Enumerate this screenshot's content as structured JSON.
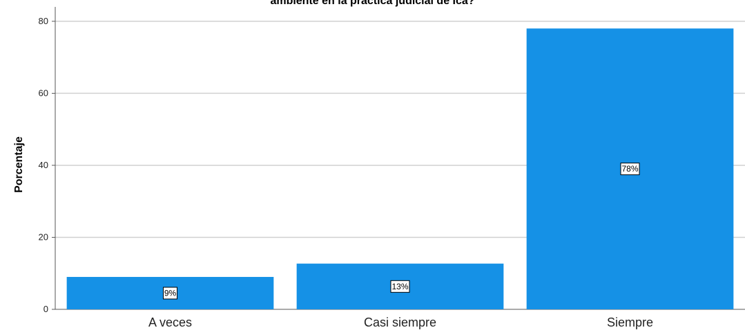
{
  "chart_data": {
    "type": "bar",
    "title": "ambiente en la práctica judicial de Ica?",
    "xlabel": "",
    "ylabel": "Porcentaje",
    "categories": [
      "A veces",
      "Casi siempre",
      "Siempre"
    ],
    "values": [
      9,
      12.7,
      78
    ],
    "data_labels": [
      "9%",
      "13%",
      "78%"
    ],
    "ylim": [
      0,
      84
    ],
    "yticks": [
      0,
      20,
      40,
      60,
      80
    ],
    "grid": true,
    "colors": {
      "bar": "#1591e6",
      "grid": "#d0d0d0",
      "axis": "#555555"
    }
  }
}
